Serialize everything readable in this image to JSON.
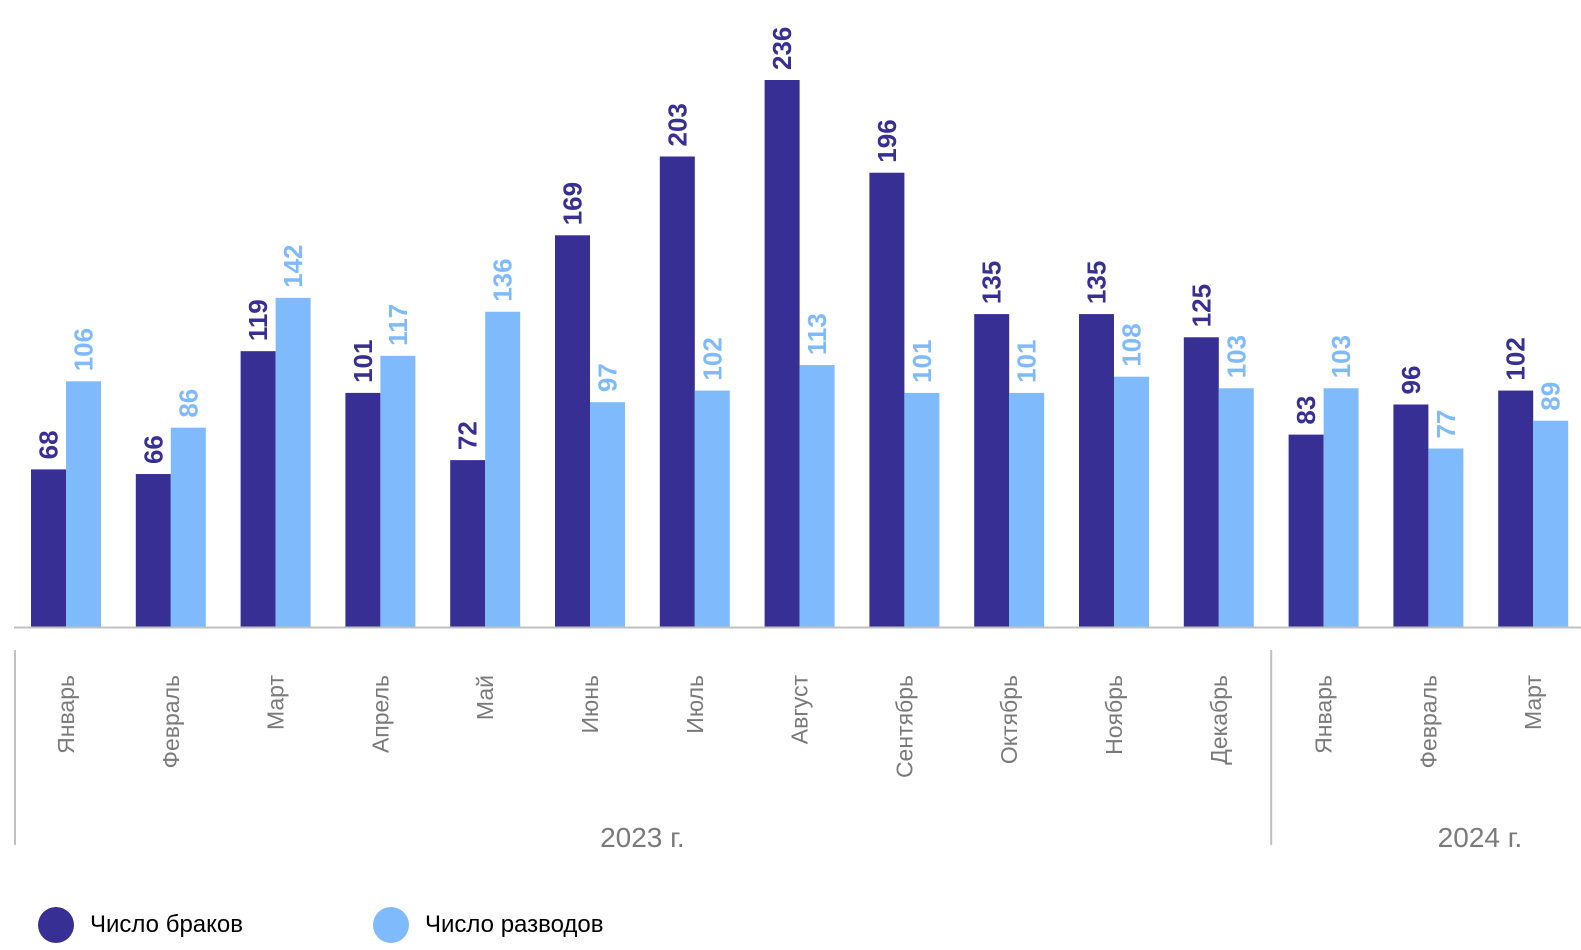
{
  "chart_data": {
    "type": "bar",
    "categories": [
      "Январь",
      "Февраль",
      "Март",
      "Апрель",
      "Май",
      "Июнь",
      "Июль",
      "Август",
      "Сентябрь",
      "Октябрь",
      "Ноябрь",
      "Декабрь",
      "Январь",
      "Февраль",
      "Март"
    ],
    "category_groups": [
      {
        "label": "2023 г.",
        "start": 0,
        "end": 11
      },
      {
        "label": "2024 г.",
        "start": 12,
        "end": 14
      }
    ],
    "series": [
      {
        "name": "Число браков",
        "color": "#372f93",
        "values": [
          68,
          66,
          119,
          101,
          72,
          169,
          203,
          236,
          196,
          135,
          135,
          125,
          83,
          96,
          102
        ]
      },
      {
        "name": "Число разводов",
        "color": "#7fbbfc",
        "values": [
          106,
          86,
          142,
          117,
          136,
          97,
          102,
          113,
          101,
          101,
          108,
          103,
          103,
          77,
          89
        ]
      }
    ],
    "ylim": [
      0,
      236
    ],
    "grid": false,
    "legend": "bottom-left",
    "data_labels": true
  },
  "colors": {
    "axis": "#c0c0c0",
    "tick_text": "#7a7a7a"
  }
}
